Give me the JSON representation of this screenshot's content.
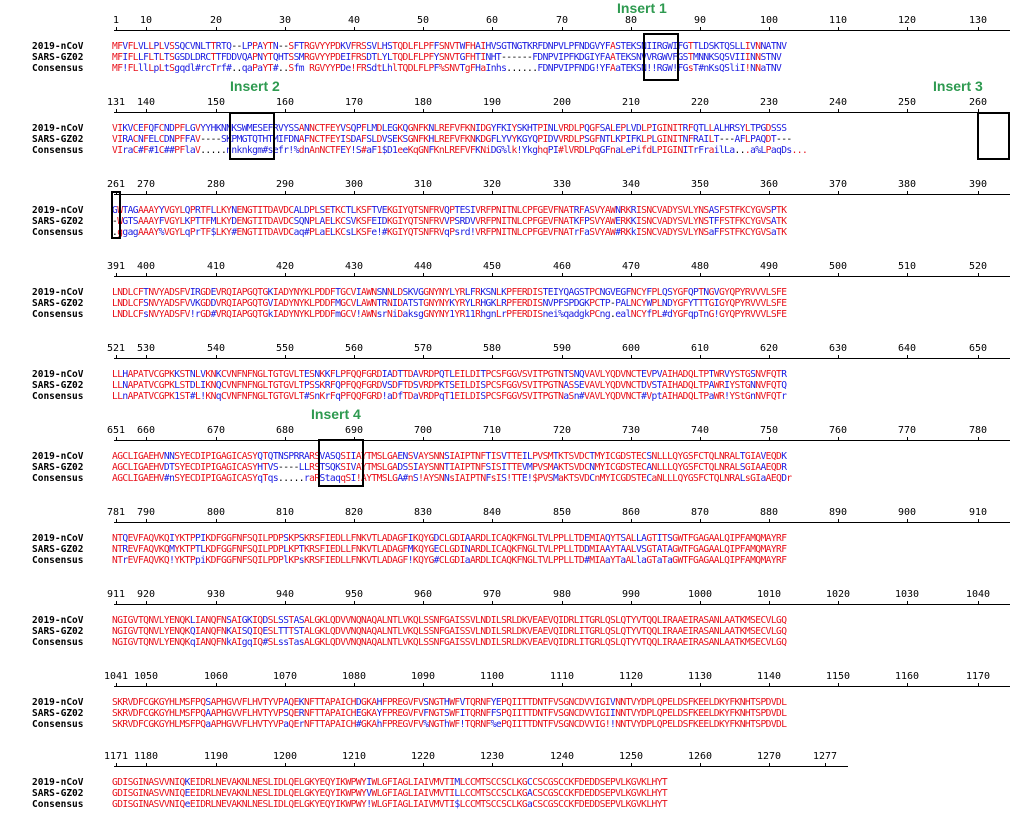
{
  "figure": {
    "row_labels": [
      "2019-nCoV",
      "SARS-GZ02",
      "Consensus"
    ],
    "inserts": [
      {
        "label": "Insert 1",
        "block": 0
      },
      {
        "label": "Insert 2",
        "block": 1
      },
      {
        "label": "Insert 3",
        "block": 1
      },
      {
        "label": "Insert 4",
        "block": 5
      }
    ],
    "blocks": [
      {
        "ruler": [
          "1",
          "10",
          "20",
          "30",
          "40",
          "50",
          "60",
          "70",
          "80",
          "90",
          "100",
          "110",
          "120",
          "130"
        ],
        "seq1": "MFVFLVLLPLVSSQCVNLTTRTQ--LPPAYTN--SFTRGVYYPDKVFRSSVLHSTQDLFLPFFSNVTWFHAIHVSGTNGTKRFDNPVLPFNDGVYFASTEKSNIIRGWIFGTTLDSKTQSLLIVNNATNV",
        "seq2": "MFIFLLFLTLTSGSDLDRCTTFDDVQAPNYTQHTSSMRGVYYPDEIFRSDTLYLTQDLFLPFYSNVTGFHTINHT------FDNPVIPFKDGIYFAATEKSNVVRGWVFGSTMNNKSQSVIIINNSTNV",
        "seq3": "MF!FLllLpLtSgqdl#rcTrf#..qaPaYT#..Sfm RGVYYPDe!FRSdtLhlTQDLFLPF%SNVTgFHaInhs......FDNPVIPFNDG!YFAaTEKSN!!RGW!FGsT#nKsQSliI!NNaTNV",
        "ruler_marks": [
          1,
          10,
          20,
          30,
          40,
          50,
          60,
          70,
          80,
          90,
          100,
          110,
          120,
          130
        ]
      },
      {
        "ruler": [
          "131",
          "140",
          "150",
          "160",
          "170",
          "180",
          "190",
          "200",
          "210",
          "220",
          "230",
          "240",
          "250",
          "260"
        ],
        "seq1": "VIKVCEFQFCNDPFLGVYYHKNNKSWMESEFRVYSSANNCTFEYVSQPFLMDLEGKQGNFKNLREFVFKNIDGYFKIYSKHTPINLVRDLPQGFSALEPLVDLPIGINITRFQTLLALHRSYLTPGDSSS",
        "seq2": "VIRACNFELCDNPFFAV----SKPMGTQTHTMIFDNAFNCTFEYISDAFSLDVSEKSGNFKHLREFVFKNKDGFLYVYKGYQPIDVVRDLPSGFNTLKPIFKLPLGINITNFRAILT---AFLPAQDT---",
        "seq3": "VIraC#F#1C##PFlaV.....nnknkgm#sefr!%dnAnNCTFEY!S#aF1$D1eeKqGNFKnLREFVFKNiDG%lk!YkghqPI#lVRDLPqGFnaLePifdLPIGINITrFrailLa...a%LPaqDs..."
      },
      {
        "ruler": [
          "261",
          "270",
          "280",
          "290",
          "300",
          "310",
          "320",
          "330",
          "340",
          "350",
          "360",
          "370",
          "380",
          "390"
        ],
        "seq1": "GWTAGAAAYYVGYLQPRTFLLKYNENGTITDAVDCALDPLSETKCTLKSFTVEKGIYQTSNFRVQPTESIVRFPNITNLCPFGEVFNATRFASVYAWNRKRISNCVADYSVLYNSASFSTFKCYGVSPTK",
        "seq2": "-WGTSAAAYFVGYLKPTTFMLKYDENGTITDAVDCSQNPLAELKCSVKSFEIDKGIYQTSNFRVVPSRDVVRFPNITNLCPFGEVFNATKFPSVYAWERKKISNCVADYSVLYNSTFFSTFKCYGVSATK",
        "seq3": ".ggagAAAY%VGYLqPrTF$LKY#ENGTITDAVDCaq#PLaELKCsLKSFe!#KGIYQTSNFRVqPsrd!VRFPNITNLCPFGEVFNATrFaSVYAW#RKkISNCVADYSVLYNSaFFSTFKCYGVSaTK"
      },
      {
        "ruler": [
          "391",
          "400",
          "410",
          "420",
          "430",
          "440",
          "450",
          "460",
          "470",
          "480",
          "490",
          "500",
          "510",
          "520"
        ],
        "seq1": "LNDLCFTNVYADSFVIRGDEVRQIAPGQTGKIADYNYKLPDDFTGCVIAWNSNNLDSKVGGNYNYLYRLFRKSNLKPFERDISTEIYQAGSTPCNGVEGFNCYFPLQSYGFQPTNGVGYQPYRVVVLSFE",
        "seq2": "LNDLCFSNVYADSFVVKGDDVRQIAPGQTGVIADYNYKLPDDFMGCVLAWNTRNIDATSTGNYNYKYRYLRHGKLRPFERDISNVPFSPDGKPCTP-PALNCYWPLNDYGFYTTTGIGYQPYRVVVLSFE",
        "seq3": "LNDLCFsNVYADSFV!rGD#VRQIAPGQTGkIADYNYKLPDDFmGCV!AWNsrNiDaksgGNYNY1YR11RhgnLrPFERDISnei%qadgkPCng.ealNCYfPL#dYGFqpTnG!GYQPYRVVVLSFE"
      },
      {
        "ruler": [
          "521",
          "530",
          "540",
          "550",
          "560",
          "570",
          "580",
          "590",
          "600",
          "610",
          "620",
          "630",
          "640",
          "650"
        ],
        "seq1": "LLHAPATVCGPKKSTNLVKNKCVNFNFNGLTGTGVLTESNKKFLPFQQFGRDIADTTDAVRDPQTLEILDITPCSFGGVSVITPGTNTSNQVAVLYQDVNCTEVPVAIHADQLTPTWRVYSTGSNVFQTR",
        "seq2": "LLNAPATVCGPKLSTDLIKNQCVNFNFNGLTGTGVLTPSSKRFQPFQQFGRDVSDFTDSVRDPKTSEILDISPCSFGGVSVITPGTNASSEVAVLYQDVNCTDVSTAIHADQLTPAWRIYSTGNNVFQTQ",
        "seq3": "LLnAPATVCGPK1ST#L!KNqCVNFNFNGLTGTGVLT#SnKrFqPFQQFGRD!aDfTDaVRDPqT1EILDISPCSFGGVSVITPGTNaSn#VAVLYQDVNCT#VptAIHADQLTPaWR!YStGnNVFQTr"
      },
      {
        "ruler": [
          "651",
          "660",
          "670",
          "680",
          "690",
          "700",
          "710",
          "720",
          "730",
          "740",
          "750",
          "760",
          "770",
          "780"
        ],
        "seq1": "AGCLIGAEHVNNSYECDIPIGAGICASYQTQTNSPRRARSVASQSIIAYTMSLGAENSVAYSNNSIAIPTNFTISVTTEILPVSMTKTSVDCTMYICGDSTECSNLLLQYGSFCTQLNRALTGIAVEQDK",
        "seq2": "AGCLIGAEHVDTSYECDIPIGAGICASYHTVS----LLRSTSQKSIVAYTMSLGADSSIAYSNNTIAIPTNFSISITTEVMPVSMAKTSVDCNMYICGDSTECANLLLQYGSFCTQLNRALSGIAAEQDR",
        "seq3": "AGCLIGAEHV#nSYECDIPIGAGICASYqTqs.....raRStaqqSI!AYTMSLGA#nS!AYSNNsIAIPTNFsIS!TTE!$PVSMaKTSVDCnMYICGDSTECaNLLLQYGSFCTQLNRALsGIaAEQDr"
      },
      {
        "ruler": [
          "781",
          "790",
          "800",
          "810",
          "820",
          "830",
          "840",
          "850",
          "860",
          "870",
          "880",
          "890",
          "900",
          "910"
        ],
        "seq1": "NTQEVFAQVKQIYKTPPIKDFGGFNFSQILPDPSKPSKRSFIEDLLFNKVTLADAGFIKQYGDCLGDIAARDLICAQKFNGLTVLPPLLTDEMIAQYTSALLAGTITSGWTFGAGAALQIPFAMQMAYRF",
        "seq2": "NTREVFAQVKQMYKTPTLKDFGGFNFSQILPDPLKPTKRSFIEDLLFNKVTLADAGFMKQYGECLGDINARDLICAQKFNGLTVLPPLLTDDMIAAYTAALVSGTATAGWTFGAGAALQIPFAMQMAYRF",
        "seq3": "NTrEVFAQVKQ!YKTPpiKDFGGFNFSQILPDPlKPsKRSFIEDLLFNKVTLADAGF!KQYG#CLGDIaARDLICAQKFNGLTVLPPLLTD#MIAaYTaALlaGTaTaGWTFGAGAALQIPFAMQMAYRF"
      },
      {
        "ruler": [
          "911",
          "920",
          "930",
          "940",
          "950",
          "960",
          "970",
          "980",
          "990",
          "1000",
          "1010",
          "1020",
          "1030",
          "1040"
        ],
        "seq1": "NGIGVTQNVLYENQKLIANQFNSAIGKIQDSLSSTASALGKLQDVVNQNAQALNTLVKQLSSNFGAISSVLNDILSRLDKVEAEVQIDRLITGRLQSLQTYVTQQLIRAAEIRASANLAATKMSECVLGQ",
        "seq2": "NGIGVTQNVLYENQKQIANQFNKAISQIQESLTTTSTALGKLQDVVNQNAQALNTLVKQLSSNFGAISSVLNDILSRLDKVEAEVQIDRLITGRLQSLQTYVTQQLIRAAEIRASANLAATKMSECVLGQ",
        "seq3": "NGIGVTQNVLYENQKqIANQFNkAIgqIQ#SLssTasALGKLQDVVNQNAQALNTLVKQLSSNFGAISSVLNDILSRLDKVEAEVQIDRLITGRLQSLQTYVTQQLIRAAEIRASANLAATKMSECVLGQ"
      },
      {
        "ruler": [
          "1041",
          "1050",
          "1060",
          "1070",
          "1080",
          "1090",
          "1100",
          "1110",
          "1120",
          "1130",
          "1140",
          "1150",
          "1160",
          "1170"
        ],
        "seq1": "SKRVDFCGKGYHLMSFPQSAPHGVVFLHVTYVPAQEKNFTTAPAICHDGKAHFPREGVFVSNGTHWFVTQRNFYEPQIITTDNTFVSGNCDVVIGIVNNTVYDPLQPELDSFKEELDKYFKNHTSPDVDL",
        "seq2": "SKRVDFCGKGYHLMSFPQAAPHGVVFLHVTYVPSQERNFTTAPAICHEGKAYFPREGVFVFNGTSWFITQRNFFSPQIITTDNTFVSGNCDVVIGIINNTVYDPLQPELDSFKEELDKYFKNHTSPDVDL",
        "seq3": "SKRVDFCGKGYHLMSFPQaAPHGVVFLHVTYVPaQErNFTTAPAICH#GKAhFPREGVFV%NGThWF!TQRNF%ePQIITTDNTFVSGNCDVVIG!!NNTVYDPLQPELDSFKEELDKYFKNHTSPDVDL"
      },
      {
        "ruler": [
          "1171",
          "1180",
          "1190",
          "1200",
          "1210",
          "1220",
          "1230",
          "1240",
          "1250",
          "1260",
          "1270",
          "1277"
        ],
        "seq1": "GDISGINASVVNIQKEIDRLNEVAKNLNESLIDLQELGKYEQYIKWPWYIWLGFIAGLIAIVMVTIMLCCMTSCCSCLKGCCSCGSCCKFDEDDSEPVLKGVKLHYT",
        "seq2": "GDISGINASVVNIQEEIDRLNEVAKNLNESLIDLQELGKYEQYIKWPWYVWLGFIAGLIAIVMVTILLCCMTSCCSCLKGACSCGSCCKFDEDDSEPVLKGVKLHYT",
        "seq3": "GDISGINASVVNIQeEIDRLNEVAKNLNESLIDLQELGKYEQYIKWPWY!WLGFIAGLIAIVMVTI$LCCMTSCCSCLKGaCSCGSCCKFDEDDSEPVLKGVKLHYT"
      }
    ]
  }
}
